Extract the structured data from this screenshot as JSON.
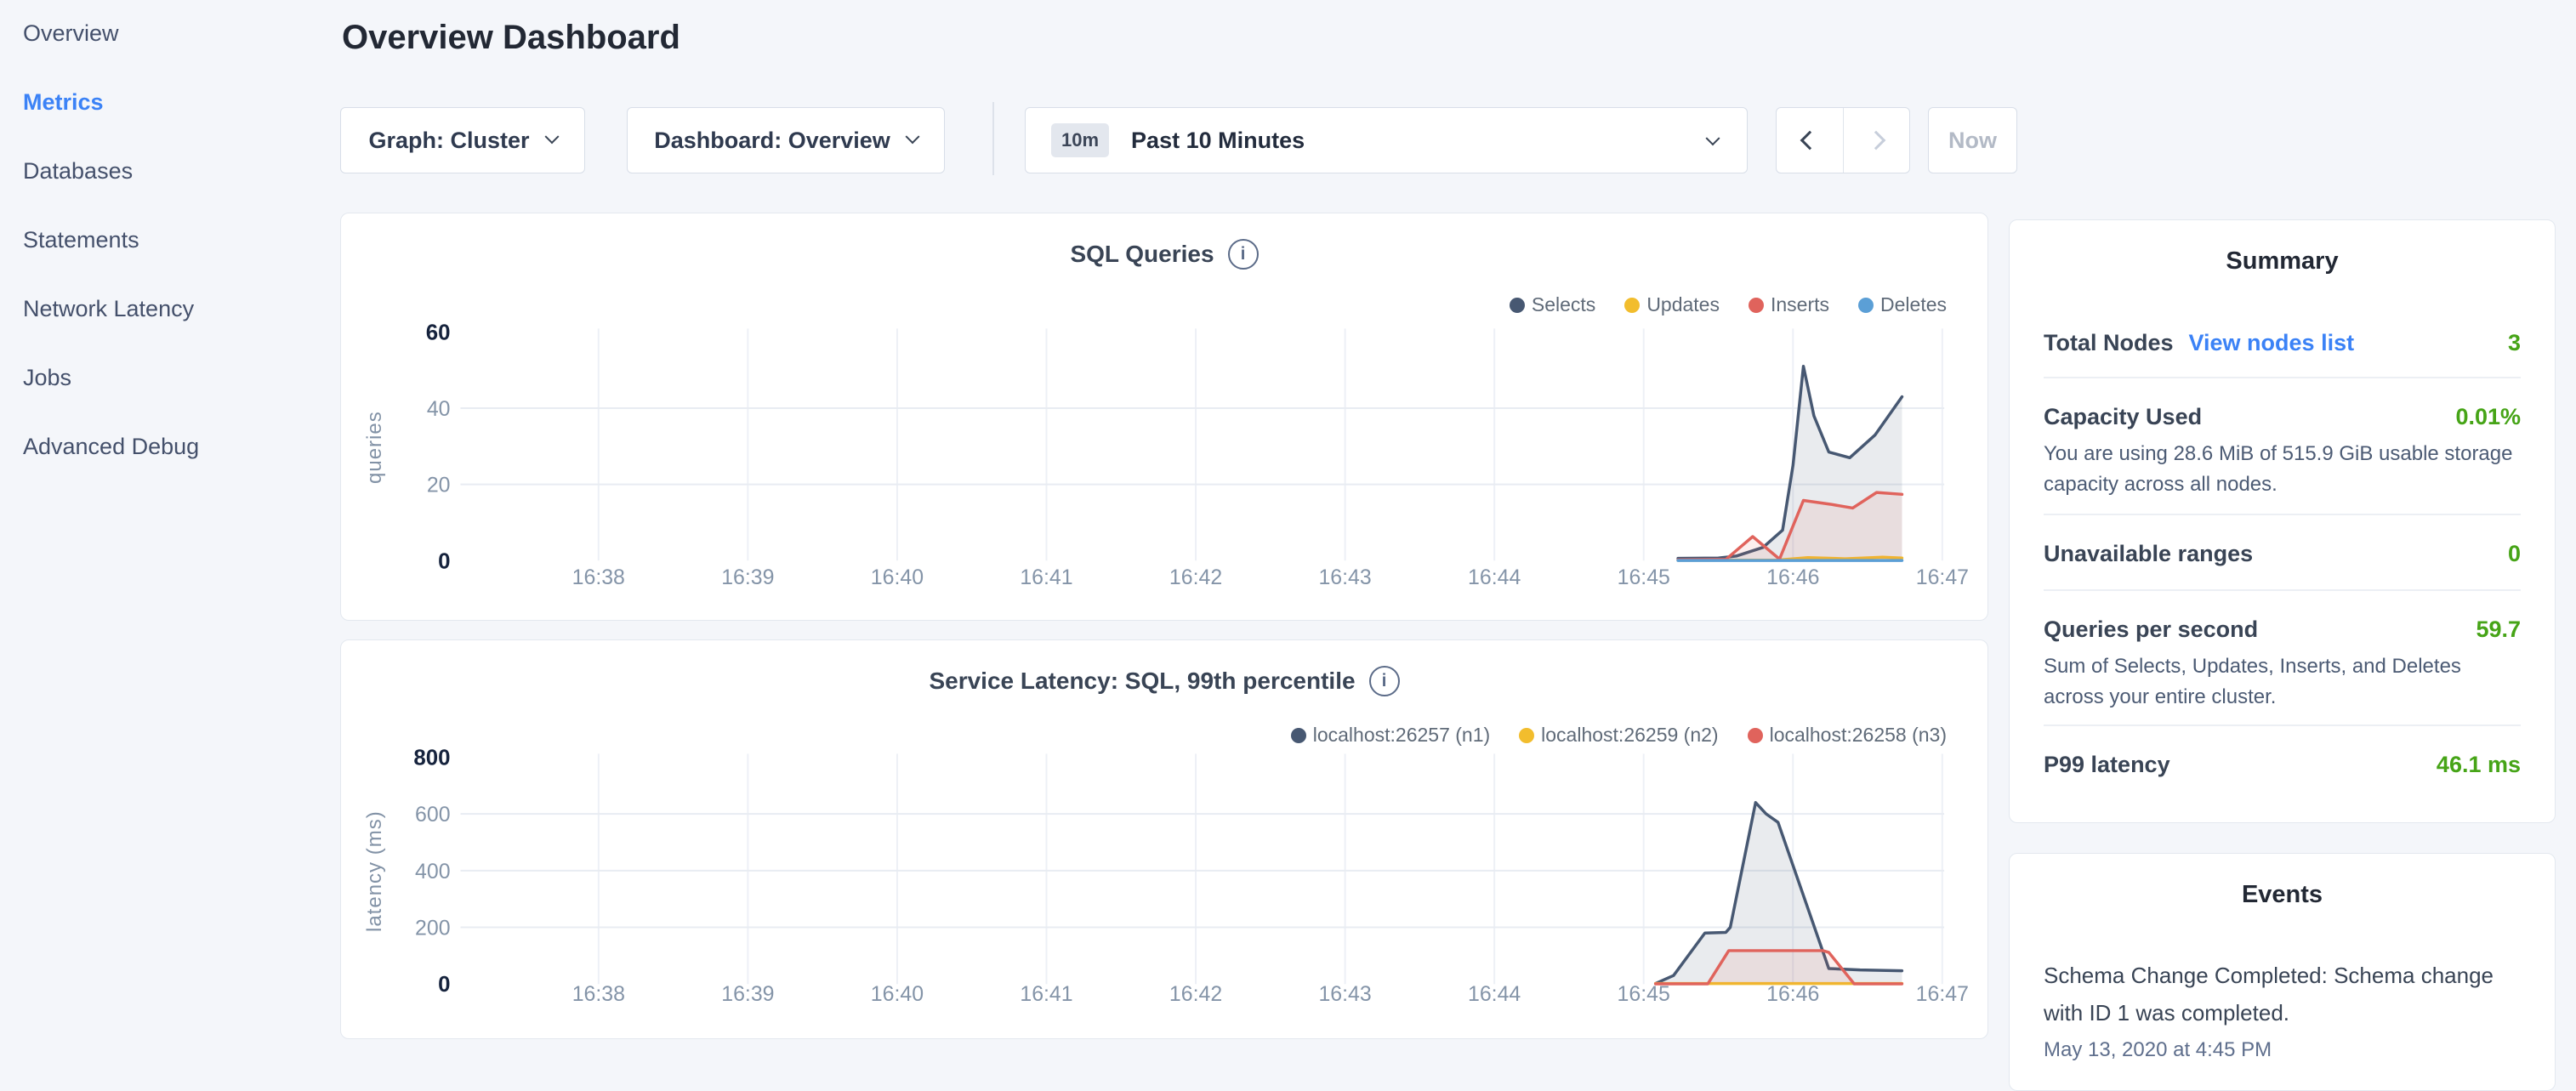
{
  "sidebar": {
    "items": [
      {
        "label": "Overview",
        "active": false
      },
      {
        "label": "Metrics",
        "active": true
      },
      {
        "label": "Databases",
        "active": false
      },
      {
        "label": "Statements",
        "active": false
      },
      {
        "label": "Network Latency",
        "active": false
      },
      {
        "label": "Jobs",
        "active": false
      },
      {
        "label": "Advanced Debug",
        "active": false
      }
    ]
  },
  "header": {
    "title": "Overview Dashboard"
  },
  "toolbar": {
    "graph_dropdown": "Graph: Cluster",
    "dashboard_dropdown": "Dashboard: Overview",
    "time_badge": "10m",
    "time_label": "Past 10 Minutes",
    "now_label": "Now"
  },
  "summary": {
    "title": "Summary",
    "rows": [
      {
        "label": "Total Nodes",
        "link": "View nodes list",
        "value": "3"
      },
      {
        "label": "Capacity Used",
        "value": "0.01%",
        "sub": "You are using 28.6 MiB of 515.9 GiB usable storage capacity across all nodes."
      },
      {
        "label": "Unavailable ranges",
        "value": "0"
      },
      {
        "label": "Queries per second",
        "value": "59.7",
        "sub": "Sum of Selects, Updates, Inserts, and Deletes across your entire cluster."
      },
      {
        "label": "P99 latency",
        "value": "46.1 ms"
      }
    ]
  },
  "events": {
    "title": "Events",
    "items": [
      {
        "text": "Schema Change Completed: Schema change with ID 1 was completed.",
        "timestamp": "May 13, 2020 at 4:45 PM"
      }
    ]
  },
  "colors": {
    "accent_blue": "#3b82f6",
    "value_green": "#46a417",
    "page_background": "#f4f6fa",
    "card_border": "#e3e8ef"
  },
  "chart_data": [
    {
      "type": "line",
      "title": "SQL Queries",
      "ylabel": "queries",
      "x_unit": "minutes since 16:38",
      "x_ticks": [
        "16:38",
        "16:39",
        "16:40",
        "16:41",
        "16:42",
        "16:43",
        "16:44",
        "16:45",
        "16:46",
        "16:47"
      ],
      "ylim": [
        0,
        60
      ],
      "y_ticks": [
        0,
        20,
        40,
        60
      ],
      "legend_position": "top-right",
      "grid": true,
      "series": [
        {
          "name": "Selects",
          "color": "#475872",
          "fill": "rgba(71,88,114,0.12)",
          "points": [
            [
              7.23,
              0.6
            ],
            [
              7.5,
              0.7
            ],
            [
              7.62,
              1.2
            ],
            [
              7.8,
              3.5
            ],
            [
              7.93,
              8
            ],
            [
              8.0,
              25
            ],
            [
              8.07,
              51
            ],
            [
              8.14,
              38
            ],
            [
              8.24,
              28.5
            ],
            [
              8.38,
              27
            ],
            [
              8.55,
              33
            ],
            [
              8.73,
              43
            ]
          ]
        },
        {
          "name": "Updates",
          "color": "#f2bd2d",
          "fill": "rgba(242,189,45,0.08)",
          "points": [
            [
              7.23,
              0.1
            ],
            [
              7.9,
              0.15
            ],
            [
              8.1,
              0.8
            ],
            [
              8.35,
              0.5
            ],
            [
              8.6,
              0.9
            ],
            [
              8.73,
              0.7
            ]
          ]
        },
        {
          "name": "Inserts",
          "color": "#e0635c",
          "fill": "rgba(224,99,92,0.10)",
          "points": [
            [
              7.23,
              0.2
            ],
            [
              7.55,
              0.3
            ],
            [
              7.73,
              6.3
            ],
            [
              7.91,
              0.4
            ],
            [
              8.07,
              15.8
            ],
            [
              8.25,
              14.8
            ],
            [
              8.4,
              13.8
            ],
            [
              8.56,
              17.9
            ],
            [
              8.73,
              17.4
            ]
          ]
        },
        {
          "name": "Deletes",
          "color": "#5b9fd6",
          "fill": "none",
          "points": [
            [
              7.23,
              0.05
            ],
            [
              8.73,
              0.05
            ]
          ]
        }
      ]
    },
    {
      "type": "line",
      "title": "Service Latency: SQL, 99th percentile",
      "ylabel": "latency (ms)",
      "x_unit": "minutes since 16:38",
      "x_ticks": [
        "16:38",
        "16:39",
        "16:40",
        "16:41",
        "16:42",
        "16:43",
        "16:44",
        "16:45",
        "16:46",
        "16:47"
      ],
      "ylim": [
        0,
        800
      ],
      "y_ticks": [
        0,
        200,
        400,
        600,
        800
      ],
      "legend_position": "top-right",
      "grid": true,
      "series": [
        {
          "name": "localhost:26257 (n1)",
          "color": "#475872",
          "fill": "rgba(71,88,114,0.12)",
          "points": [
            [
              7.08,
              2
            ],
            [
              7.2,
              30
            ],
            [
              7.41,
              180
            ],
            [
              7.55,
              182
            ],
            [
              7.58,
              200
            ],
            [
              7.75,
              640
            ],
            [
              7.82,
              600
            ],
            [
              7.9,
              570
            ],
            [
              8.24,
              55
            ],
            [
              8.45,
              50
            ],
            [
              8.73,
              47
            ]
          ]
        },
        {
          "name": "localhost:26259 (n2)",
          "color": "#f2bd2d",
          "fill": "none",
          "points": [
            [
              7.08,
              2
            ],
            [
              8.73,
              2
            ]
          ]
        },
        {
          "name": "localhost:26258 (n3)",
          "color": "#e0635c",
          "fill": "rgba(224,99,92,0.10)",
          "points": [
            [
              7.08,
              1
            ],
            [
              7.43,
              1
            ],
            [
              7.57,
              118
            ],
            [
              8.2,
              118
            ],
            [
              8.24,
              112
            ],
            [
              8.41,
              1
            ],
            [
              8.73,
              1
            ]
          ]
        }
      ]
    }
  ]
}
